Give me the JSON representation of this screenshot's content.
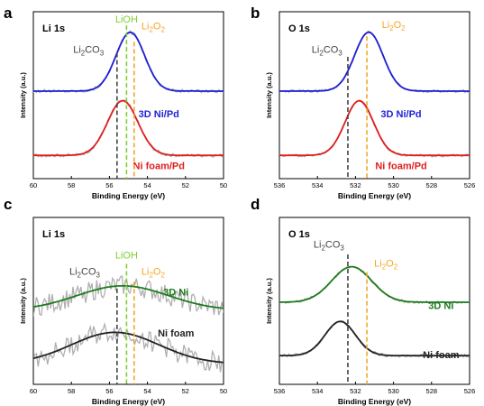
{
  "colors": {
    "blue": "#1f1fd6",
    "red": "#e01e1e",
    "green": "#1e7b1e",
    "dark": "#222222",
    "gray": "#b0b0b0",
    "ann_gray": "#444444",
    "ann_green": "#7fcf2f",
    "ann_orange": "#f5a623"
  },
  "chart_data": [
    {
      "panel_letter": "a",
      "type": "line",
      "title": "Li 1s",
      "xlabel": "Binding Energy (eV)",
      "ylabel": "Intensity (a.u.)",
      "xlim": [
        60,
        50
      ],
      "x_ticks": [
        "60",
        "58",
        "56",
        "54",
        "52",
        "50"
      ],
      "x_tick_values": [
        60,
        58,
        56,
        54,
        52,
        50
      ],
      "reversed_x": true,
      "noise": 0.012,
      "series": [
        {
          "name": "3D Ni/Pd",
          "color": "#1f1fd6",
          "baseline": 0.52,
          "peaks": [
            {
              "center": 54.9,
              "amp": 0.43,
              "sigma": 0.75
            }
          ],
          "label_x": 53.4,
          "label_y": 0.33
        },
        {
          "name": "Ni foam/Pd",
          "color": "#e01e1e",
          "baseline": 0.05,
          "peaks": [
            {
              "center": 55.3,
              "amp": 0.4,
              "sigma": 0.8
            }
          ],
          "label_x": 53.4,
          "label_y": -0.05
        }
      ],
      "markers": [
        {
          "label": "Li",
          "sub": "2",
          "tail": "CO",
          "sub2": "3",
          "x": 55.6,
          "color": "#444444",
          "top": 0.8,
          "text_x": 57.1,
          "text_y": 0.8
        },
        {
          "label": "LiOH",
          "sub": "",
          "tail": "",
          "sub2": "",
          "x": 55.1,
          "color": "#7fcf2f",
          "top": 1.0,
          "text_x": 55.1,
          "text_y": 1.02
        },
        {
          "label": "Li",
          "sub": "2",
          "tail": "O",
          "sub2": "2",
          "x": 54.7,
          "color": "#f5a623",
          "top": 0.88,
          "text_x": 53.7,
          "text_y": 0.97
        }
      ]
    },
    {
      "panel_letter": "b",
      "type": "line",
      "title": "O 1s",
      "xlabel": "Binding Energy (eV)",
      "ylabel": "Intensity (a.u.)",
      "xlim": [
        536,
        526
      ],
      "x_ticks": [
        "536",
        "534",
        "532",
        "530",
        "528",
        "526"
      ],
      "x_tick_values": [
        536,
        534,
        532,
        530,
        528,
        526
      ],
      "reversed_x": true,
      "noise": 0.01,
      "series": [
        {
          "name": "3D Ni/Pd",
          "color": "#1f1fd6",
          "baseline": 0.52,
          "peaks": [
            {
              "center": 531.3,
              "amp": 0.43,
              "sigma": 0.75
            }
          ],
          "label_x": 529.6,
          "label_y": 0.33
        },
        {
          "name": "Ni foam/Pd",
          "color": "#e01e1e",
          "baseline": 0.05,
          "peaks": [
            {
              "center": 531.8,
              "amp": 0.4,
              "sigma": 0.75
            }
          ],
          "label_x": 529.6,
          "label_y": -0.05
        }
      ],
      "markers": [
        {
          "label": "Li",
          "sub": "2",
          "tail": "CO",
          "sub2": "3",
          "x": 532.4,
          "color": "#444444",
          "top": 0.77,
          "text_x": 533.5,
          "text_y": 0.8
        },
        {
          "label": "Li",
          "sub": "2",
          "tail": "O",
          "sub2": "2",
          "x": 531.4,
          "color": "#f5a623",
          "top": 0.92,
          "text_x": 530.0,
          "text_y": 0.98
        }
      ]
    },
    {
      "panel_letter": "c",
      "type": "line",
      "title": "Li 1s",
      "xlabel": "Binding Energy (eV)",
      "ylabel": "Intensity (a.u.)",
      "xlim": [
        60,
        50
      ],
      "x_ticks": [
        "60",
        "58",
        "56",
        "54",
        "52",
        "50"
      ],
      "x_tick_values": [
        60,
        58,
        56,
        54,
        52,
        50
      ],
      "reversed_x": true,
      "noise": 0.075,
      "series": [
        {
          "name": "3D Ni",
          "color": "#1e7b1e",
          "baseline": 0.42,
          "peaks": [
            {
              "center": 55.3,
              "amp": 0.18,
              "sigma": 2.4
            }
          ],
          "label_x": 52.5,
          "label_y": 0.53
        },
        {
          "name": "Ni foam",
          "color": "#222222",
          "baseline": 0.03,
          "peaks": [
            {
              "center": 55.7,
              "amp": 0.23,
              "sigma": 2.3
            }
          ],
          "label_x": 52.5,
          "label_y": 0.23
        }
      ],
      "markers": [
        {
          "label": "Li",
          "sub": "2",
          "tail": "CO",
          "sub2": "3",
          "x": 55.6,
          "color": "#444444",
          "top": 0.58,
          "text_x": 57.3,
          "text_y": 0.68
        },
        {
          "label": "LiOH",
          "sub": "",
          "tail": "",
          "sub2": "",
          "x": 55.1,
          "color": "#7fcf2f",
          "top": 0.76,
          "text_x": 55.1,
          "text_y": 0.8
        },
        {
          "label": "Li",
          "sub": "2",
          "tail": "O",
          "sub2": "2",
          "x": 54.7,
          "color": "#f5a623",
          "top": 0.63,
          "text_x": 53.7,
          "text_y": 0.68
        }
      ]
    },
    {
      "panel_letter": "d",
      "type": "line",
      "title": "O 1s",
      "xlabel": "Binding Energy (eV)",
      "ylabel": "Intensity (a.u.)",
      "xlim": [
        536,
        526
      ],
      "x_ticks": [
        "536",
        "534",
        "532",
        "530",
        "528",
        "526"
      ],
      "x_tick_values": [
        536,
        534,
        532,
        530,
        528,
        526
      ],
      "reversed_x": true,
      "noise": 0.01,
      "series": [
        {
          "name": "3D Ni",
          "color": "#1e7b1e",
          "baseline": 0.48,
          "peaks": [
            {
              "center": 532.2,
              "amp": 0.26,
              "sigma": 1.05
            }
          ],
          "label_x": 527.5,
          "label_y": 0.43
        },
        {
          "name": "Ni foam",
          "color": "#222222",
          "baseline": 0.09,
          "peaks": [
            {
              "center": 532.8,
              "amp": 0.25,
              "sigma": 0.8
            }
          ],
          "label_x": 527.5,
          "label_y": 0.07
        }
      ],
      "markers": [
        {
          "label": "Li",
          "sub": "2",
          "tail": "CO",
          "sub2": "3",
          "x": 532.4,
          "color": "#444444",
          "top": 0.83,
          "text_x": 533.4,
          "text_y": 0.88
        },
        {
          "label": "Li",
          "sub": "2",
          "tail": "O",
          "sub2": "2",
          "x": 531.4,
          "color": "#f5a623",
          "top": 0.7,
          "text_x": 530.4,
          "text_y": 0.74
        }
      ]
    }
  ]
}
